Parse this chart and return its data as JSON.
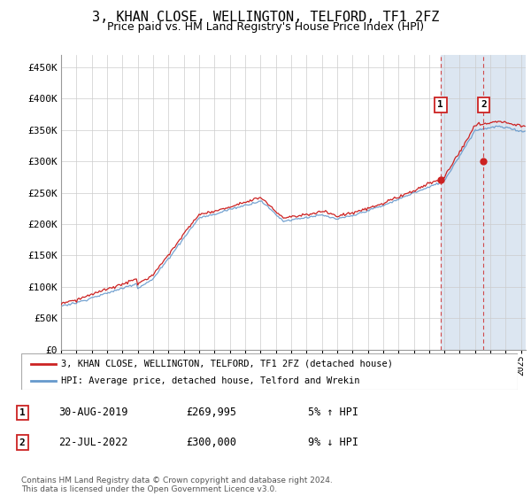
{
  "title": "3, KHAN CLOSE, WELLINGTON, TELFORD, TF1 2FZ",
  "subtitle": "Price paid vs. HM Land Registry's House Price Index (HPI)",
  "ylim": [
    0,
    470000
  ],
  "yticks": [
    0,
    50000,
    100000,
    150000,
    200000,
    250000,
    300000,
    350000,
    400000,
    450000
  ],
  "ytick_labels": [
    "£0",
    "£50K",
    "£100K",
    "£150K",
    "£200K",
    "£250K",
    "£300K",
    "£350K",
    "£400K",
    "£450K"
  ],
  "hpi_color": "#6699cc",
  "price_color": "#cc2222",
  "marker1_x": 2019.75,
  "marker1_price": 269995,
  "marker1_label": "1",
  "marker1_date": "30-AUG-2019",
  "marker1_pct": "5% ↑ HPI",
  "marker2_x": 2022.55,
  "marker2_price": 300000,
  "marker2_label": "2",
  "marker2_date": "22-JUL-2022",
  "marker2_pct": "9% ↓ HPI",
  "legend_label1": "3, KHAN CLOSE, WELLINGTON, TELFORD, TF1 2FZ (detached house)",
  "legend_label2": "HPI: Average price, detached house, Telford and Wrekin",
  "footer": "Contains HM Land Registry data © Crown copyright and database right 2024.\nThis data is licensed under the Open Government Licence v3.0.",
  "highlight_bg": "#dce6f1",
  "shade_start": 2019.75,
  "xmin": 1995,
  "xmax": 2025.3,
  "title_fontsize": 11,
  "subtitle_fontsize": 9
}
